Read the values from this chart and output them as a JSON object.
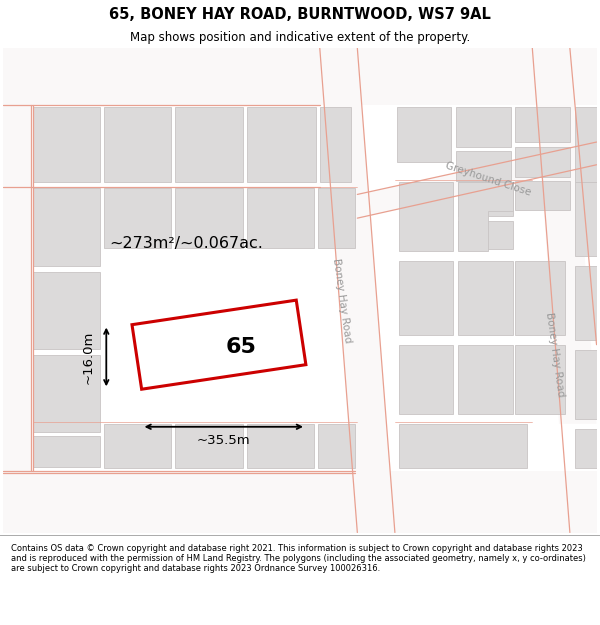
{
  "title": "65, BONEY HAY ROAD, BURNTWOOD, WS7 9AL",
  "subtitle": "Map shows position and indicative extent of the property.",
  "footer": "Contains OS data © Crown copyright and database right 2021. This information is subject to Crown copyright and database rights 2023 and is reproduced with the permission of HM Land Registry. The polygons (including the associated geometry, namely x, y co-ordinates) are subject to Crown copyright and database rights 2023 Ordnance Survey 100026316.",
  "property_rect_color": "#cc0000",
  "property_label": "65",
  "area_label": "~273m²/~0.067ac.",
  "dim_width_label": "~35.5m",
  "dim_height_label": "~16.0m",
  "road_label_1": "Boney Hay Road",
  "road_label_2": "Greyhound Close",
  "road_label_3": "Boney Hay Road",
  "map_bg": "#f2f0f0",
  "building_fill": "#dcdada",
  "building_edge": "#c8c4c4",
  "road_fill": "#faf8f8",
  "street_line_color": "#e8a090",
  "building_lw": 0.6
}
